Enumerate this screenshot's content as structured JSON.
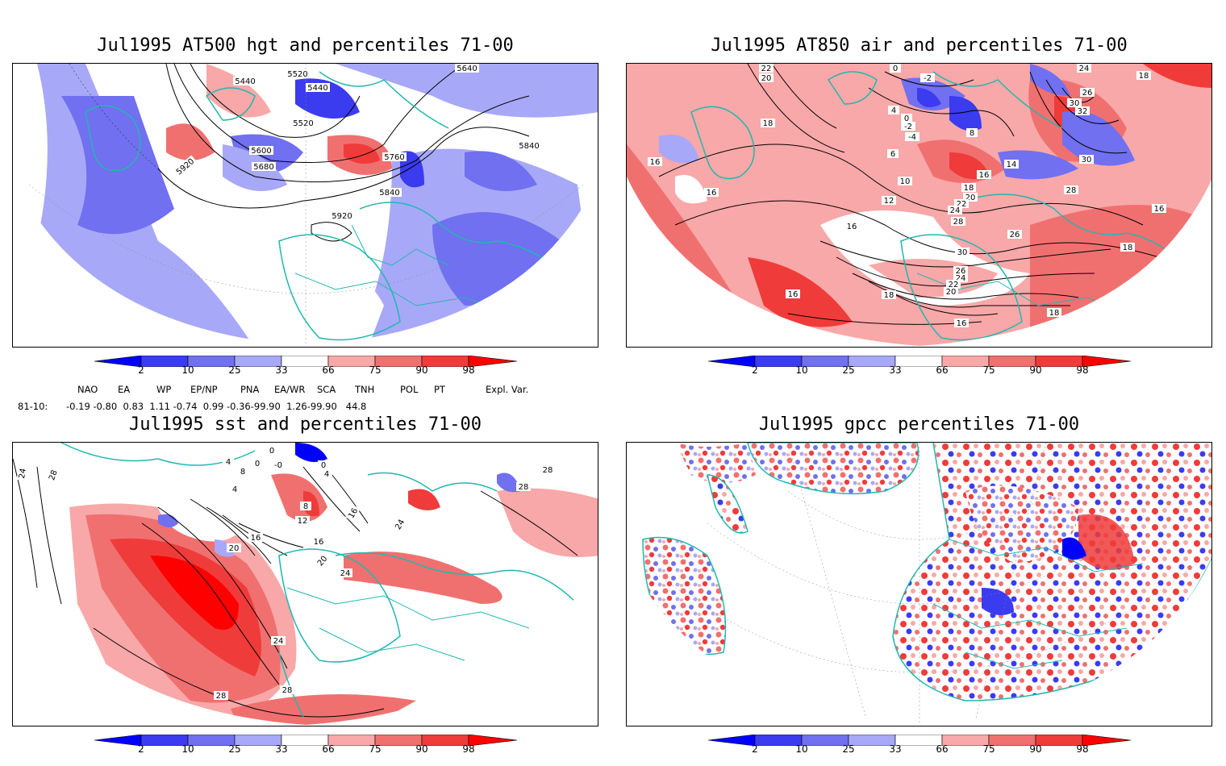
{
  "panels": [
    {
      "title": "Jul1995 AT500 hgt and percentiles 71-00",
      "contour_labels": [
        "5640",
        "5520",
        "5440",
        "5440",
        "5520",
        "5600",
        "5680",
        "5760",
        "5840",
        "5840",
        "5920",
        "5920"
      ]
    },
    {
      "title": "Jul1995 AT850 air and percentiles 71-00",
      "contour_labels": [
        "22",
        "20",
        "0",
        "-2",
        "24",
        "18",
        "26",
        "4",
        "0",
        "-2",
        "-4",
        "30",
        "32",
        "18",
        "16",
        "8",
        "6",
        "30",
        "14",
        "10",
        "16",
        "18",
        "28",
        "16",
        "12",
        "20",
        "22",
        "24",
        "28",
        "26",
        "16",
        "16",
        "30",
        "18",
        "26",
        "24",
        "22",
        "16",
        "20",
        "18",
        "18",
        "16"
      ]
    },
    {
      "title": "Jul1995 sst and percentiles 71-00",
      "contour_labels": [
        "24",
        "28",
        "0",
        "4",
        "0",
        "-0",
        "8",
        "0",
        "4",
        "28",
        "28",
        "4",
        "8",
        "12",
        "16",
        "16",
        "16",
        "20",
        "20",
        "24",
        "24",
        "24",
        "28",
        "28"
      ]
    },
    {
      "title": "Jul1995 gpcc percentiles 71-00",
      "contour_labels": []
    }
  ],
  "colorbar": {
    "labels": [
      "2",
      "10",
      "25",
      "33",
      "66",
      "75",
      "90",
      "98"
    ],
    "colors": [
      "#0000ff",
      "#3b3bf0",
      "#7070f0",
      "#a8a8f8",
      "#ffffff",
      "#f8a8a8",
      "#f07070",
      "#f03b3b",
      "#ff0000"
    ]
  },
  "indices": {
    "headers": [
      "NAO",
      "EA",
      "WP",
      "EP/NP",
      "PNA",
      "EA/WR",
      "SCA",
      "TNH",
      "POL",
      "PT",
      "Expl. Var."
    ],
    "row_label": "81-10:",
    "values_text": "-0.19 -0.80  0.83  1.11 -0.74  0.99 -0.36-99.90  1.26-99.90   44.8"
  }
}
